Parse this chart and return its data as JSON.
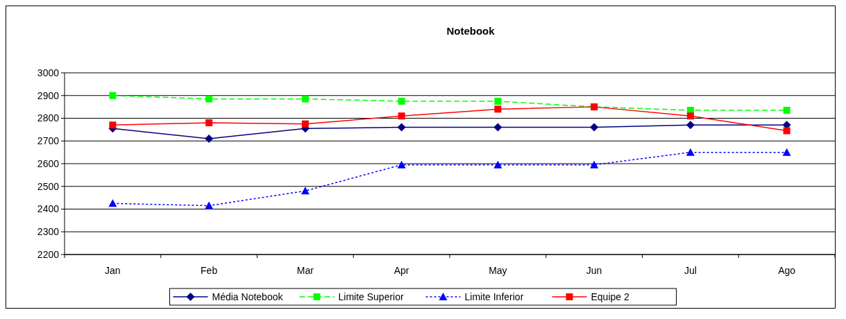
{
  "chart_data": {
    "type": "line",
    "title": "Notebook",
    "categories": [
      "Jan",
      "Feb",
      "Mar",
      "Apr",
      "May",
      "Jun",
      "Jul",
      "Ago"
    ],
    "series": [
      {
        "name": "Média Notebook",
        "color": "#000080",
        "marker": "diamond",
        "line_style": "solid",
        "values": [
          2755,
          2710,
          2755,
          2760,
          2760,
          2760,
          2770,
          2770
        ]
      },
      {
        "name": "Limite Superior",
        "color": "#00ff00",
        "marker": "square",
        "line_style": "dashed",
        "values": [
          2900,
          2885,
          2885,
          2875,
          2875,
          2850,
          2835,
          2835
        ]
      },
      {
        "name": "Limite Inferior",
        "color": "#0000ff",
        "marker": "triangle",
        "line_style": "dotted",
        "values": [
          2425,
          2415,
          2480,
          2595,
          2595,
          2595,
          2650,
          2650
        ]
      },
      {
        "name": "Equipe 2",
        "color": "#ff0000",
        "marker": "square",
        "line_style": "solid",
        "values": [
          2770,
          2780,
          2775,
          2810,
          2840,
          2850,
          2810,
          2745
        ]
      }
    ],
    "ylim": [
      2200,
      3000
    ],
    "yticks": [
      2200,
      2300,
      2400,
      2500,
      2600,
      2700,
      2800,
      2900,
      3000
    ],
    "grid": "y",
    "legend": "bottom"
  }
}
